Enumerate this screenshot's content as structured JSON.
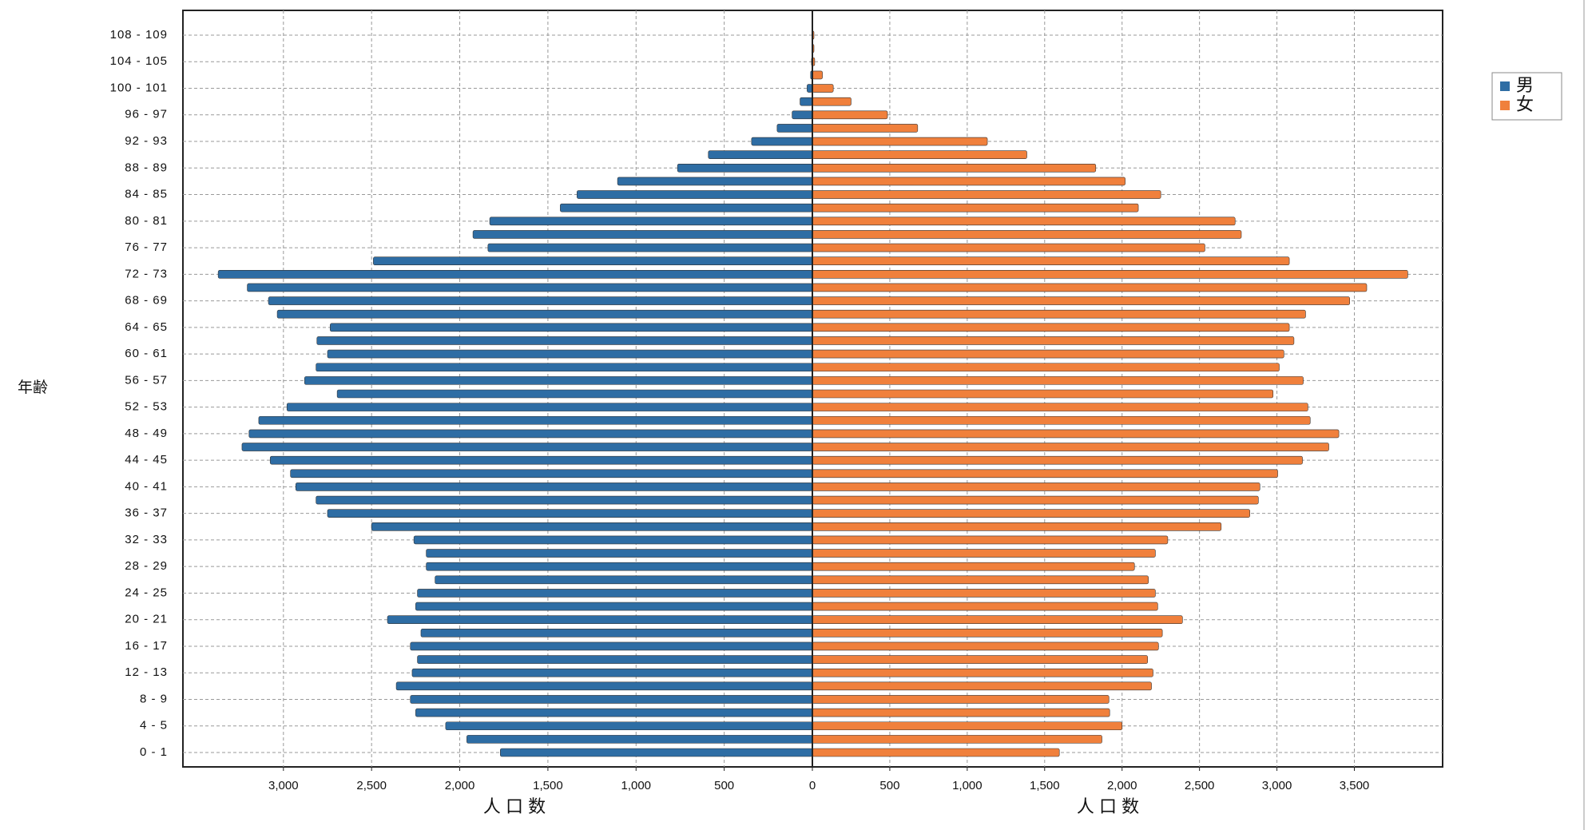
{
  "chart_data": {
    "type": "pyramid",
    "ylabel": "年齢",
    "xlabel": "人 口 数",
    "grid": true,
    "categories": [
      "0 - 1",
      null,
      "4 - 5",
      null,
      "8 - 9",
      null,
      "12 - 13",
      null,
      "16 - 17",
      null,
      "20 - 21",
      null,
      "24 - 25",
      null,
      "28 - 29",
      null,
      "32 - 33",
      null,
      "36 - 37",
      null,
      "40 - 41",
      null,
      "44 - 45",
      null,
      "48 - 49",
      null,
      "52 - 53",
      null,
      "56 - 57",
      null,
      "60 - 61",
      null,
      "64 - 65",
      null,
      "68 - 69",
      null,
      "72 - 73",
      null,
      "76 - 77",
      null,
      "80 - 81",
      null,
      "84 - 85",
      null,
      "88 - 89",
      null,
      "92 - 93",
      null,
      "96 - 97",
      null,
      "100 - 101",
      null,
      "104 - 105",
      null,
      "108 - 109"
    ],
    "series": [
      {
        "name": "男",
        "color": "#2e6da4",
        "xlim": [
          0,
          3570
        ],
        "xticks": [
          500,
          {
            "value": 1000,
            "label": "1,000"
          },
          {
            "value": 1500,
            "label": "1,500"
          },
          {
            "value": 2000,
            "label": "2,000"
          },
          {
            "value": 2500,
            "label": "2,500"
          },
          {
            "value": 3000,
            "label": "3,000"
          }
        ],
        "values": [
          1770,
          1960,
          2080,
          2250,
          2280,
          2360,
          2270,
          2240,
          2280,
          2220,
          2410,
          2250,
          2240,
          2140,
          2190,
          2190,
          2260,
          2500,
          2750,
          2815,
          2930,
          2960,
          3075,
          3235,
          3195,
          3140,
          2980,
          2695,
          2880,
          2815,
          2750,
          2810,
          2735,
          3035,
          3085,
          3205,
          3370,
          2490,
          1840,
          1925,
          1830,
          1430,
          1335,
          1105,
          765,
          590,
          345,
          200,
          115,
          70,
          30,
          10,
          5,
          3,
          2
        ]
      },
      {
        "name": "女",
        "color": "#f0803c",
        "xlim": [
          0,
          4070
        ],
        "xticks": [
          0,
          500,
          {
            "value": 1000,
            "label": "1,000"
          },
          {
            "value": 1500,
            "label": "1,500"
          },
          {
            "value": 2000,
            "label": "2,000"
          },
          {
            "value": 2500,
            "label": "2,500"
          },
          {
            "value": 3000,
            "label": "3,000"
          },
          {
            "value": 3500,
            "label": "3,500"
          }
        ],
        "values": [
          1595,
          1870,
          2000,
          1920,
          1915,
          2190,
          2200,
          2165,
          2235,
          2260,
          2390,
          2230,
          2215,
          2170,
          2080,
          2215,
          2295,
          2640,
          2825,
          2880,
          2890,
          3005,
          3165,
          3335,
          3400,
          3215,
          3200,
          2975,
          3170,
          3015,
          3045,
          3110,
          3080,
          3185,
          3470,
          3580,
          3845,
          3080,
          2535,
          2770,
          2730,
          2105,
          2250,
          2020,
          1830,
          1385,
          1130,
          680,
          485,
          250,
          135,
          65,
          15,
          5,
          3
        ]
      }
    ]
  }
}
